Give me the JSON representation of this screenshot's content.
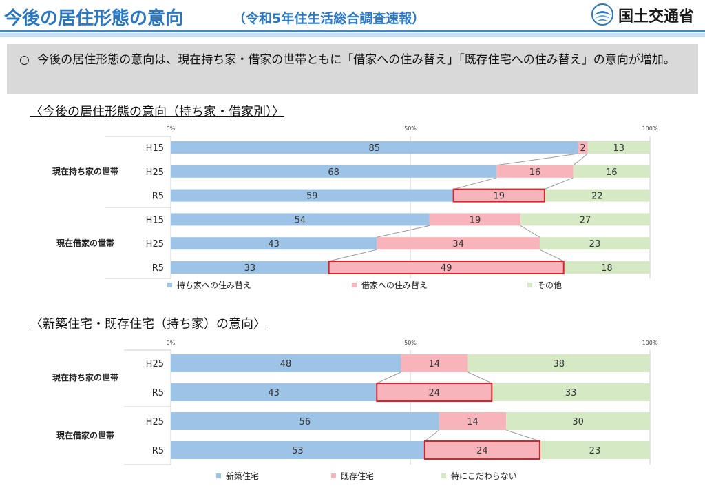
{
  "header": {
    "title": "今後の居住形態の意向",
    "subtitle": "（令和5年住生活総合調査速報）",
    "logo_text": "国土交通省"
  },
  "summary": {
    "bullet": "○",
    "text": "今後の居住形態の意向は、現在持ち家・借家の世帯ともに「借家への住み替え」「既存住宅への住み替え」の意向が増加。"
  },
  "colors": {
    "blue": "#9dc3e6",
    "pink": "#f8b4bb",
    "green": "#d5eac4",
    "highlight": "#e0202a"
  },
  "chart_data": [
    {
      "type": "bar",
      "title": "〈今後の居住形態の意向（持ち家・借家別）〉",
      "stacked": true,
      "orientation": "horizontal",
      "xlim": [
        0,
        100
      ],
      "ticks": [
        "0%",
        "50%",
        "100%"
      ],
      "groups": [
        {
          "name": "現在持ち家の世帯",
          "rows": [
            {
              "label": "H15",
              "values": [
                85,
                2,
                13
              ]
            },
            {
              "label": "H25",
              "values": [
                68,
                16,
                16
              ]
            },
            {
              "label": "R5",
              "values": [
                59,
                19,
                22
              ],
              "highlight": 1
            }
          ]
        },
        {
          "name": "現在借家の世帯",
          "rows": [
            {
              "label": "H15",
              "values": [
                54,
                19,
                27
              ]
            },
            {
              "label": "H25",
              "values": [
                43,
                34,
                23
              ]
            },
            {
              "label": "R5",
              "values": [
                33,
                49,
                18
              ],
              "highlight": 1
            }
          ]
        }
      ],
      "series": [
        {
          "name": "持ち家への住み替え",
          "color": "#9dc3e6"
        },
        {
          "name": "借家への住み替え",
          "color": "#f8b4bb"
        },
        {
          "name": "その他",
          "color": "#d5eac4"
        }
      ],
      "legend": "bottom"
    },
    {
      "type": "bar",
      "title": "〈新築住宅・既存住宅（持ち家）の意向〉",
      "stacked": true,
      "orientation": "horizontal",
      "xlim": [
        0,
        100
      ],
      "ticks": [
        "0%",
        "50%",
        "100%"
      ],
      "groups": [
        {
          "name": "現在持ち家の世帯",
          "rows": [
            {
              "label": "H25",
              "values": [
                48,
                14,
                38
              ]
            },
            {
              "label": "R5",
              "values": [
                43,
                24,
                33
              ],
              "highlight": 1
            }
          ]
        },
        {
          "name": "現在借家の世帯",
          "rows": [
            {
              "label": "H25",
              "values": [
                56,
                14,
                30
              ]
            },
            {
              "label": "R5",
              "values": [
                53,
                24,
                23
              ],
              "highlight": 1
            }
          ]
        }
      ],
      "series": [
        {
          "name": "新築住宅",
          "color": "#9dc3e6"
        },
        {
          "name": "既存住宅",
          "color": "#f8b4bb"
        },
        {
          "name": "特にこだわらない",
          "color": "#d5eac4"
        }
      ],
      "legend": "bottom"
    }
  ]
}
